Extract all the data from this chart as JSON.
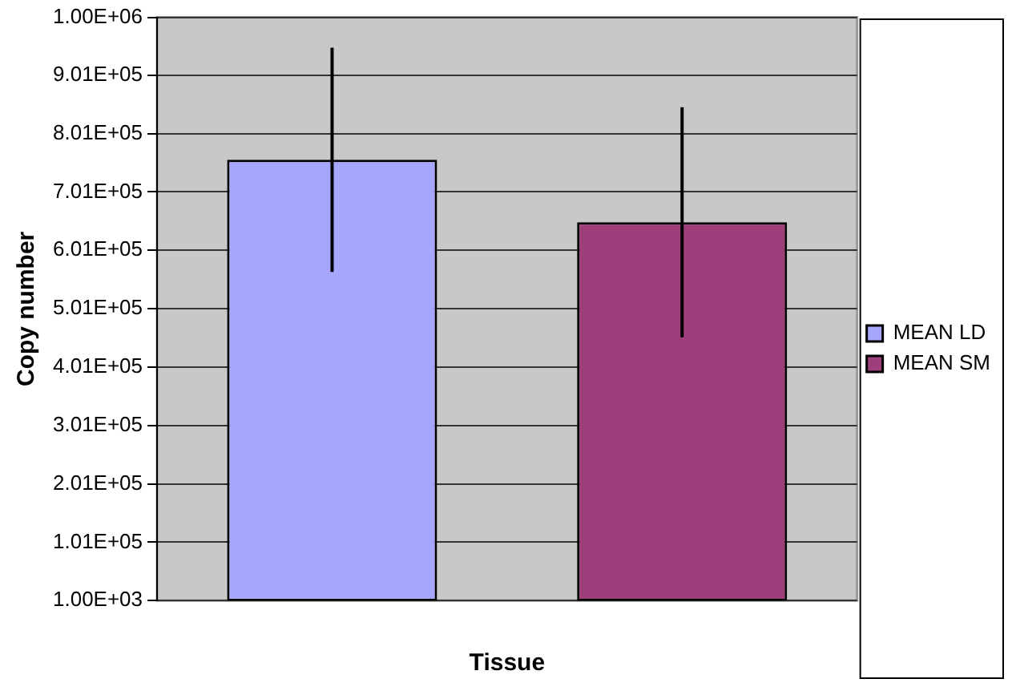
{
  "chart_data": {
    "type": "bar",
    "xlabel": "Tissue",
    "ylabel": "Copy number",
    "categories": [
      null
    ],
    "series": [
      {
        "name": "MEAN LD",
        "color": "#a6a6fc",
        "values": [
          756000
        ],
        "errors": [
          192000
        ]
      },
      {
        "name": "MEAN SM",
        "color": "#9e3f7b",
        "values": [
          649000
        ],
        "errors": [
          197000
        ]
      }
    ],
    "ylim": [
      1000,
      1000000
    ],
    "yticks": [
      {
        "value": 1000,
        "label": "1.00E+03"
      },
      {
        "value": 101000,
        "label": "1.01E+05"
      },
      {
        "value": 201000,
        "label": "2.01E+05"
      },
      {
        "value": 301000,
        "label": "3.01E+05"
      },
      {
        "value": 401000,
        "label": "4.01E+05"
      },
      {
        "value": 501000,
        "label": "5.01E+05"
      },
      {
        "value": 601000,
        "label": "6.01E+05"
      },
      {
        "value": 701000,
        "label": "7.01E+05"
      },
      {
        "value": 801000,
        "label": "8.01E+05"
      },
      {
        "value": 901000,
        "label": "9.01E+05"
      },
      {
        "value": 1000000,
        "label": "1.00E+06"
      }
    ],
    "grid": "y",
    "legend": "right"
  }
}
